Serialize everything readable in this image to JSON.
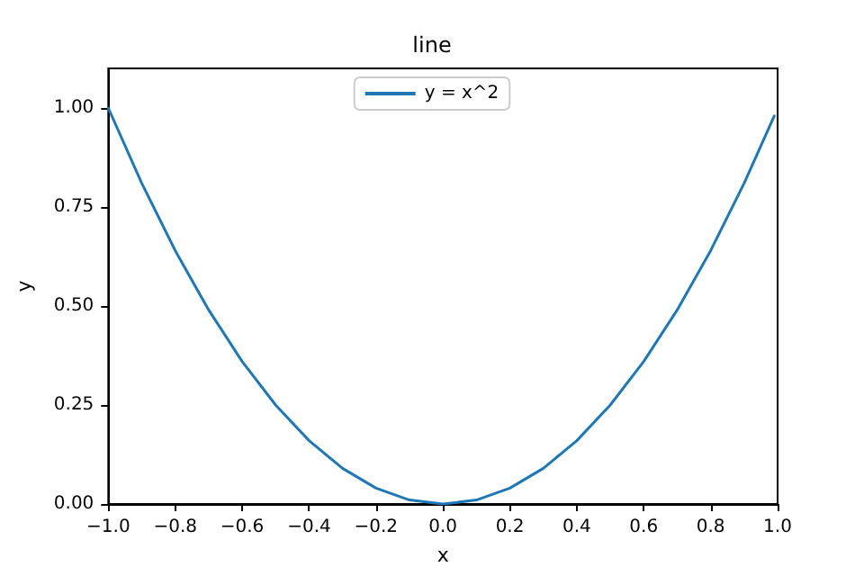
{
  "chart_data": {
    "type": "line",
    "title": "line",
    "xlabel": "x",
    "ylabel": "y",
    "x": [
      -1,
      -0.9,
      -0.8,
      -0.7,
      -0.6,
      -0.5,
      -0.4,
      -0.3,
      -0.2,
      -0.1,
      0,
      0.1,
      0.2,
      0.3,
      0.4,
      0.5,
      0.6,
      0.7,
      0.8,
      0.9,
      0.99
    ],
    "series": [
      {
        "name": "y = x^2",
        "color": "#1f77b4",
        "values": [
          1,
          0.81,
          0.64,
          0.49,
          0.36,
          0.25,
          0.16,
          0.09,
          0.04,
          0.01,
          0,
          0.01,
          0.04,
          0.09,
          0.16,
          0.25,
          0.36,
          0.49,
          0.64,
          0.81,
          0.98
        ]
      }
    ],
    "xlim": [
      -1,
      1
    ],
    "xticks": [
      {
        "value": -1,
        "label": "−1.0"
      },
      {
        "value": -0.8,
        "label": "−0.8"
      },
      {
        "value": -0.6,
        "label": "−0.6"
      },
      {
        "value": -0.4,
        "label": "−0.4"
      },
      {
        "value": -0.2,
        "label": "−0.2"
      },
      {
        "value": 0,
        "label": "0.0"
      },
      {
        "value": 0.2,
        "label": "0.2"
      },
      {
        "value": 0.4,
        "label": "0.4"
      },
      {
        "value": 0.6,
        "label": "0.6"
      },
      {
        "value": 0.8,
        "label": "0.8"
      },
      {
        "value": 1,
        "label": "1.0"
      }
    ],
    "ylim": [
      0,
      1.1
    ],
    "yticks": [
      {
        "value": 0,
        "label": "0.00"
      },
      {
        "value": 0.25,
        "label": "0.25"
      },
      {
        "value": 0.5,
        "label": "0.50"
      },
      {
        "value": 0.75,
        "label": "0.75"
      },
      {
        "value": 1,
        "label": "1.00"
      }
    ],
    "legend": "top",
    "marker": "none",
    "line_style": "solid",
    "grid": false
  }
}
